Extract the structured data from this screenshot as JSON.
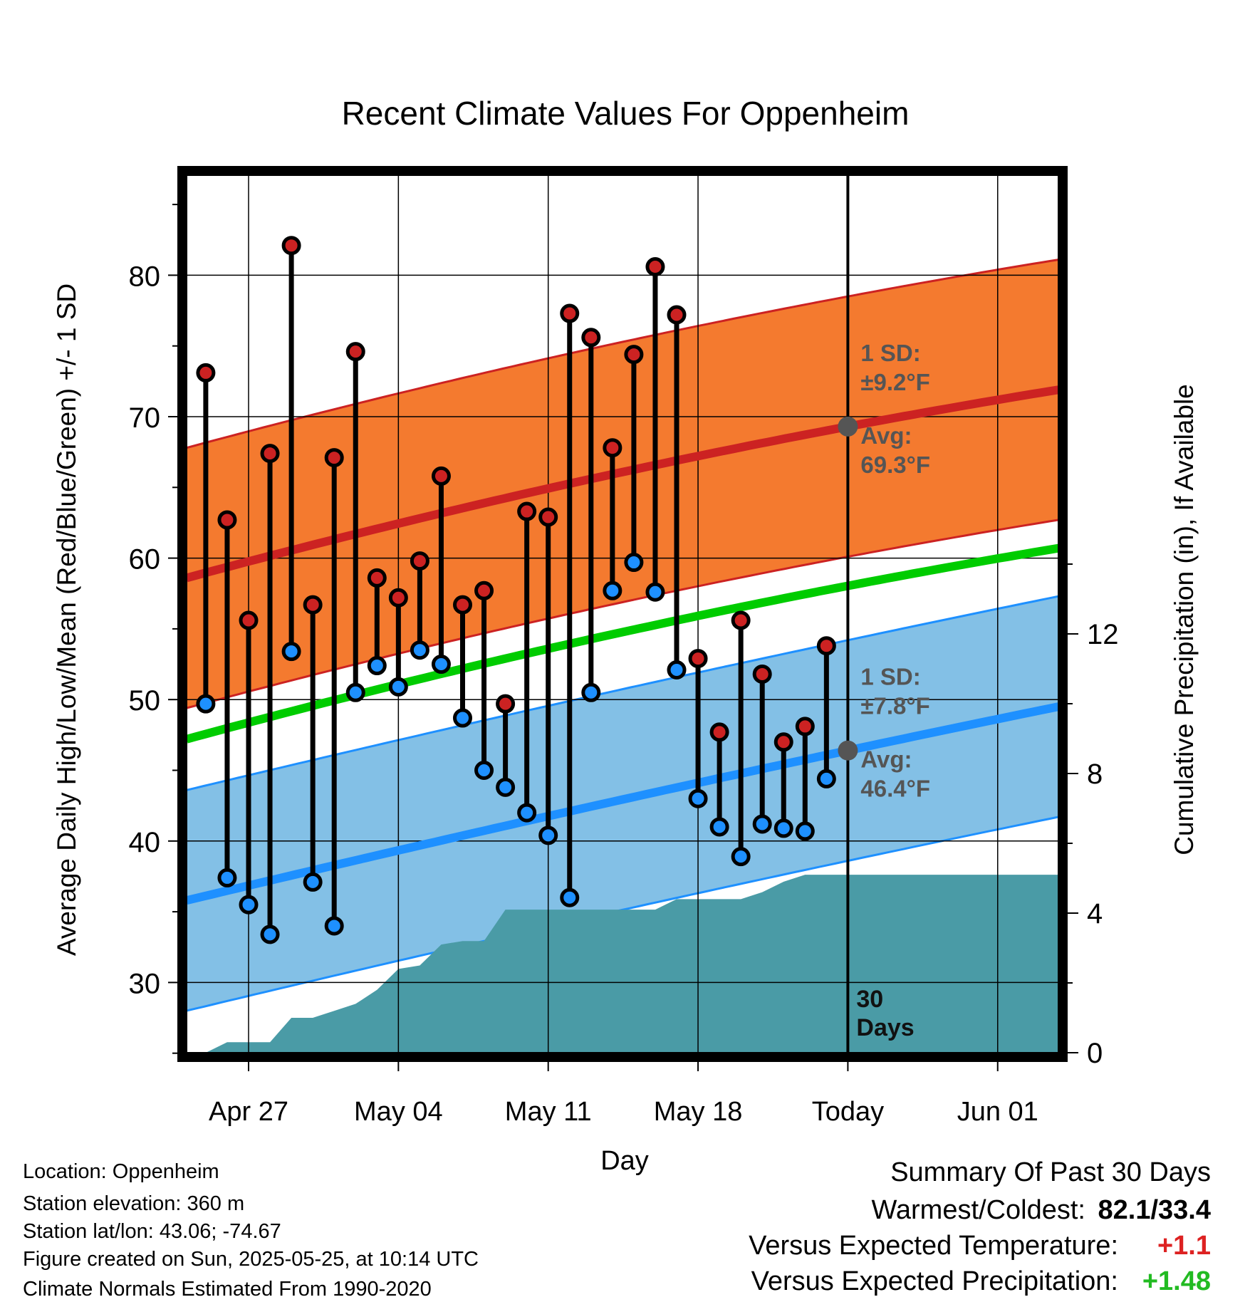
{
  "chart_data": {
    "type": "line",
    "title": "Recent Climate Values For Oppenheim",
    "xlabel": "Day",
    "ylabel": "Average Daily High/Low/Mean (Red/Blue/Green) +/- 1 SD",
    "y2label": "Cumulative Precipitation (in), If Available",
    "ylim": [
      25,
      88
    ],
    "y2lim": [
      0,
      31
    ],
    "y_ticks": [
      "30",
      "40",
      "50",
      "60",
      "70",
      "80"
    ],
    "y2_ticks": [
      "0",
      "4",
      "8",
      "12"
    ],
    "x_ticks": [
      {
        "date": "2025-04-27",
        "label": "Apr 27"
      },
      {
        "date": "2025-05-04",
        "label": "May 04"
      },
      {
        "date": "2025-05-11",
        "label": "May 11"
      },
      {
        "date": "2025-05-18",
        "label": "May 18"
      },
      {
        "date": "2025-05-25",
        "label": "Today"
      },
      {
        "date": "2025-06-01",
        "label": "Jun 01"
      }
    ],
    "grid": true,
    "today": "2025-05-25",
    "days": [
      "2025-04-25",
      "2025-04-26",
      "2025-04-27",
      "2025-04-28",
      "2025-04-29",
      "2025-04-30",
      "2025-05-01",
      "2025-05-02",
      "2025-05-03",
      "2025-05-04",
      "2025-05-05",
      "2025-05-06",
      "2025-05-07",
      "2025-05-08",
      "2025-05-09",
      "2025-05-10",
      "2025-05-11",
      "2025-05-12",
      "2025-05-13",
      "2025-05-14",
      "2025-05-15",
      "2025-05-16",
      "2025-05-17",
      "2025-05-18",
      "2025-05-19",
      "2025-05-20",
      "2025-05-21",
      "2025-05-22",
      "2025-05-23",
      "2025-05-24"
    ],
    "series": [
      {
        "name": "High",
        "color": "#cc2222",
        "values": [
          73.1,
          62.7,
          55.6,
          67.4,
          82.1,
          56.7,
          67.1,
          74.6,
          58.6,
          57.2,
          59.8,
          65.8,
          56.7,
          57.7,
          49.7,
          63.3,
          62.9,
          77.3,
          75.6,
          67.8,
          74.4,
          80.6,
          77.2,
          52.9,
          47.7,
          55.6,
          51.8,
          47.0,
          48.1,
          53.8
        ]
      },
      {
        "name": "Low",
        "color": "#1e90ff",
        "values": [
          49.7,
          37.4,
          35.5,
          33.4,
          53.4,
          37.1,
          34.0,
          50.5,
          52.4,
          50.9,
          53.5,
          52.5,
          48.7,
          45.0,
          43.8,
          42.0,
          40.4,
          36.0,
          50.5,
          57.7,
          59.7,
          57.6,
          52.1,
          43.0,
          41.0,
          38.9,
          41.2,
          40.9,
          40.7,
          44.4
        ]
      }
    ],
    "normal_high": {
      "color": "#cc2222",
      "band_color": "#f47a2f",
      "start": 58.6,
      "today": 69.3,
      "end": 71.9,
      "sd": 9.2
    },
    "normal_low": {
      "color": "#1e90ff",
      "band_color": "#83c0e6",
      "start": 35.8,
      "today": 46.4,
      "end": 49.5,
      "sd": 7.8
    },
    "normal_mean": {
      "color": "#00cc00",
      "start": 47.2,
      "end": 60.7
    },
    "precip": {
      "color": "#4a9ba6",
      "x": [
        "2025-04-24",
        "2025-04-25",
        "2025-04-26",
        "2025-04-27",
        "2025-04-28",
        "2025-04-29",
        "2025-04-30",
        "2025-05-01",
        "2025-05-02",
        "2025-05-03",
        "2025-05-04",
        "2025-05-05",
        "2025-05-06",
        "2025-05-07",
        "2025-05-08",
        "2025-05-09",
        "2025-05-10",
        "2025-05-11",
        "2025-05-12",
        "2025-05-13",
        "2025-05-14",
        "2025-05-15",
        "2025-05-16",
        "2025-05-17",
        "2025-05-18",
        "2025-05-19",
        "2025-05-20",
        "2025-05-21",
        "2025-05-22",
        "2025-05-23",
        "2025-05-24",
        "2025-06-04"
      ],
      "values": [
        0.0,
        0.0,
        0.3,
        0.3,
        0.3,
        1.0,
        1.0,
        1.2,
        1.4,
        1.8,
        2.4,
        2.5,
        3.1,
        3.2,
        3.2,
        4.1,
        4.1,
        4.1,
        4.1,
        4.1,
        4.1,
        4.1,
        4.1,
        4.4,
        4.4,
        4.4,
        4.4,
        4.6,
        4.9,
        5.1,
        5.1,
        5.1
      ]
    },
    "annotations": {
      "high_sd": [
        "1 SD:",
        "±9.2°F"
      ],
      "high_avg": [
        "Avg:",
        "69.3°F"
      ],
      "low_sd": [
        "1 SD:",
        "±7.8°F"
      ],
      "low_avg": [
        "Avg:",
        "46.4°F"
      ],
      "days": [
        "30",
        "Days"
      ]
    }
  },
  "info": {
    "location": "Location: Oppenheim",
    "elevation": "Station elevation: 360 m",
    "latlon": "Station lat/lon: 43.06; -74.67",
    "created": "Figure created on Sun, 2025-05-25, at 10:14 UTC",
    "normals": "Climate Normals Estimated From 1990-2020"
  },
  "summary": {
    "title": "Summary Of Past 30 Days",
    "warmest_label": "Warmest/Coldest:",
    "warmest_value": "82.1/33.4",
    "temp_label": "Versus Expected Temperature:",
    "temp_value": "+1.1",
    "temp_color": "#dd2222",
    "precip_label": "Versus Expected Precipitation:",
    "precip_value": "+1.48",
    "precip_color": "#22bb22"
  }
}
